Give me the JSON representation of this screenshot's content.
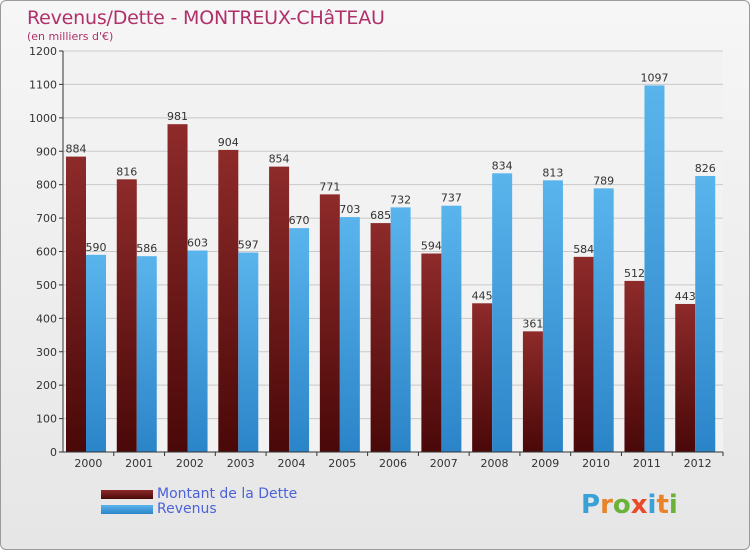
{
  "chart_data": {
    "type": "bar",
    "title": "Revenus/Dette - MONTREUX-CHâTEAU",
    "subtitle": "(en milliers d'€)",
    "categories": [
      "2000",
      "2001",
      "2002",
      "2003",
      "2004",
      "2005",
      "2006",
      "2007",
      "2008",
      "2009",
      "2010",
      "2011",
      "2012"
    ],
    "series": [
      {
        "name": "Montant de la Dette",
        "color": "#7a1b1b",
        "values": [
          884,
          816,
          981,
          904,
          854,
          771,
          685,
          594,
          445,
          361,
          584,
          512,
          443
        ]
      },
      {
        "name": "Revenus",
        "color": "#3a9ee0",
        "values": [
          590,
          586,
          603,
          597,
          670,
          703,
          732,
          737,
          834,
          813,
          789,
          1097,
          826
        ]
      }
    ],
    "ylim": [
      0,
      1200
    ],
    "yticks": [
      0,
      100,
      200,
      300,
      400,
      500,
      600,
      700,
      800,
      900,
      1000,
      1100,
      1200
    ],
    "grid": true,
    "legend_position": "bottom-left"
  },
  "logo": {
    "text": "Proxiti",
    "colors": [
      "#3aa0d8",
      "#e8832a",
      "#6ab23a",
      "#e84a2a",
      "#3aa0d8",
      "#e8832a",
      "#6ab23a"
    ]
  }
}
